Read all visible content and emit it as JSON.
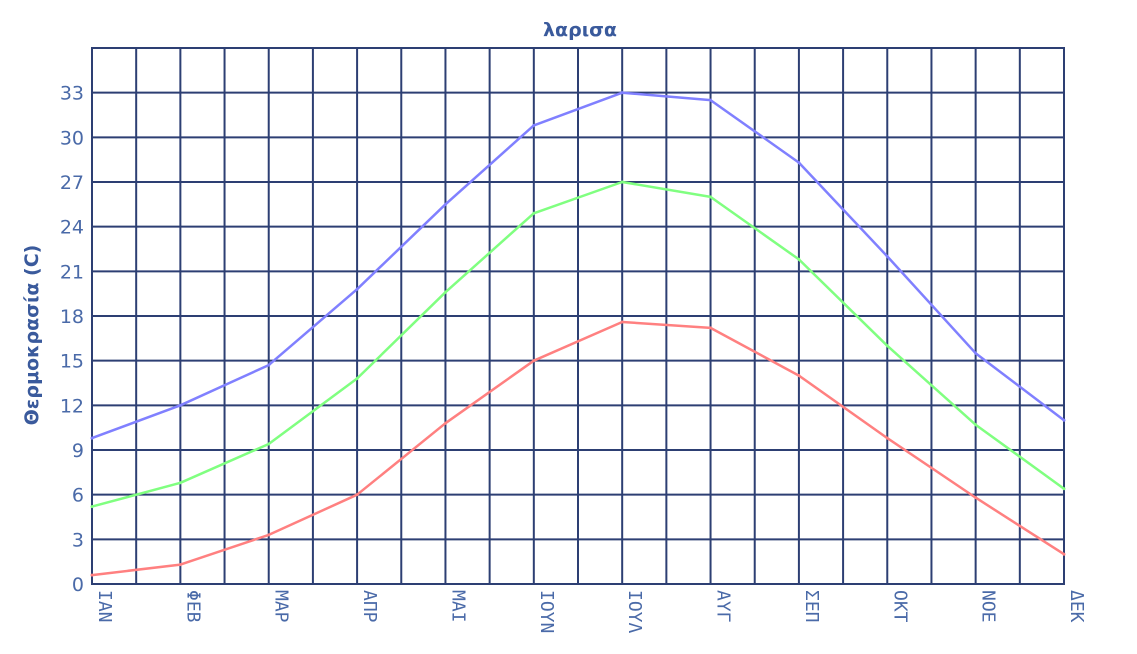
{
  "chart_data": {
    "type": "line",
    "title": "λαρισα",
    "ylabel": "Θερμοκρασία (C)",
    "xlabel": "",
    "categories": [
      "ΙΑΝ",
      "ΦΕΒ",
      "ΜΑΡ",
      "ΑΠΡ",
      "ΜΑΙ",
      "ΙΟΥΝ",
      "ΙΟΥΛ",
      "ΑΥΓ",
      "ΣΕΠ",
      "ΟΚΤ",
      "ΝΟΕ",
      "ΔΕΚ"
    ],
    "yticks": [
      0,
      3,
      6,
      9,
      12,
      15,
      18,
      21,
      24,
      27,
      30,
      33
    ],
    "ylim": [
      0,
      36
    ],
    "grid": true,
    "series": [
      {
        "color": "#8080ff",
        "values": [
          9.8,
          12.0,
          14.7,
          19.8,
          25.5,
          30.8,
          33.0,
          32.5,
          28.3,
          22.0,
          15.5,
          11.0
        ]
      },
      {
        "color": "#80ff80",
        "values": [
          5.2,
          6.8,
          9.4,
          13.8,
          19.6,
          24.9,
          27.0,
          26.0,
          21.8,
          16.0,
          10.7,
          6.4
        ]
      },
      {
        "color": "#ff8080",
        "values": [
          0.6,
          1.3,
          3.3,
          6.0,
          10.8,
          15.0,
          17.6,
          17.2,
          14.0,
          9.8,
          5.8,
          2.0
        ]
      }
    ]
  }
}
